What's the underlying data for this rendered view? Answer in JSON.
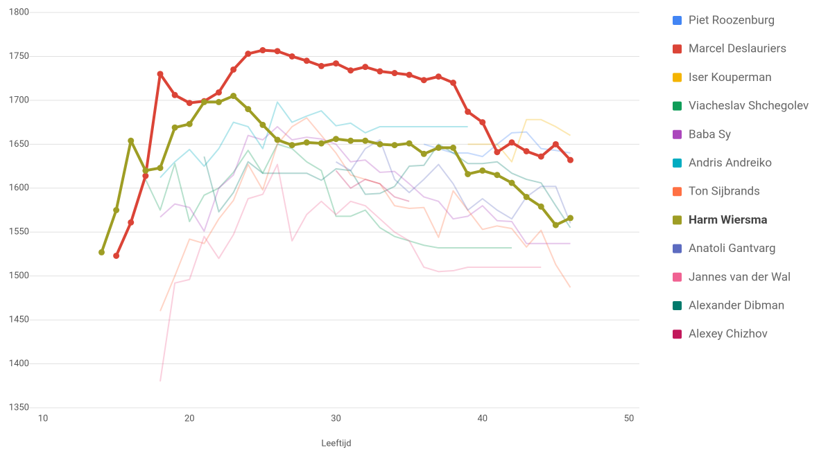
{
  "chart_data": {
    "type": "line",
    "x_label": "Leeftijd",
    "xlim": [
      10,
      50
    ],
    "xticks": [
      10,
      20,
      30,
      40,
      50
    ],
    "ylim": [
      1350,
      1800
    ],
    "yticks": [
      1350,
      1400,
      1450,
      1500,
      1550,
      1600,
      1650,
      1700,
      1750,
      1800
    ],
    "grid": true,
    "legend": "right",
    "series": [
      {
        "name": "Piet Roozenburg",
        "color": "#4285f4",
        "emphasis": false,
        "x": [
          36,
          37,
          38,
          39,
          40,
          41,
          42,
          43,
          44,
          45,
          46
        ],
        "values": [
          1650,
          1645,
          1640,
          1640,
          1636,
          1650,
          1663,
          1664,
          1645,
          1643,
          1640
        ]
      },
      {
        "name": "Marcel Deslauriers",
        "color": "#db4437",
        "emphasis": true,
        "x": [
          15,
          16,
          17,
          18,
          19,
          20,
          21,
          22,
          23,
          24,
          25,
          26,
          27,
          28,
          29,
          30,
          31,
          32,
          33,
          34,
          35,
          36,
          37,
          38,
          39,
          40,
          41,
          42,
          43,
          44,
          45,
          46
        ],
        "values": [
          1523,
          1561,
          1614,
          1730,
          1706,
          1697,
          1699,
          1709,
          1735,
          1753,
          1757,
          1756,
          1750,
          1745,
          1739,
          1742,
          1734,
          1738,
          1733,
          1731,
          1729,
          1723,
          1727,
          1720,
          1687,
          1675,
          1641,
          1652,
          1642,
          1636,
          1650,
          1632
        ]
      },
      {
        "name": "Iser Kouperman",
        "color": "#f4b400",
        "emphasis": false,
        "x": [
          39,
          40,
          41,
          42,
          43,
          44,
          45,
          46
        ],
        "values": [
          1650,
          1650,
          1650,
          1630,
          1678,
          1678,
          1670,
          1660
        ]
      },
      {
        "name": "Viacheslav Shchegolev",
        "color": "#0f9d58",
        "emphasis": false,
        "x": [
          17,
          18,
          19,
          20,
          21,
          22,
          23,
          24,
          25,
          26,
          27,
          28,
          29,
          30,
          31,
          32,
          33,
          34,
          35,
          36,
          37,
          38,
          39,
          40,
          41,
          42
        ],
        "values": [
          1610,
          1575,
          1628,
          1562,
          1592,
          1600,
          1618,
          1643,
          1617,
          1650,
          1645,
          1630,
          1620,
          1568,
          1568,
          1575,
          1555,
          1545,
          1540,
          1535,
          1532,
          1532,
          1532,
          1532,
          1532,
          1532
        ]
      },
      {
        "name": "Baba Sy",
        "color": "#ab47bc",
        "emphasis": false,
        "x": [
          18,
          19,
          20,
          21,
          22,
          23,
          24,
          25,
          26,
          27,
          28,
          29,
          30,
          31,
          32,
          33,
          34,
          35,
          36,
          37,
          38,
          39,
          40,
          41,
          42,
          43,
          44,
          45,
          46
        ],
        "values": [
          1567,
          1582,
          1578,
          1551,
          1600,
          1615,
          1660,
          1655,
          1670,
          1655,
          1658,
          1656,
          1650,
          1630,
          1632,
          1618,
          1619,
          1605,
          1590,
          1585,
          1565,
          1568,
          1580,
          1563,
          1562,
          1537,
          1537,
          1537,
          1537
        ]
      },
      {
        "name": "Andris Andreiko",
        "color": "#00acc1",
        "emphasis": false,
        "x": [
          18,
          19,
          20,
          21,
          22,
          23,
          24,
          25,
          26,
          27,
          28,
          29,
          30,
          31,
          32,
          33,
          34,
          35,
          36,
          37,
          38,
          39
        ],
        "values": [
          1612,
          1630,
          1644,
          1625,
          1645,
          1675,
          1670,
          1645,
          1698,
          1675,
          1682,
          1688,
          1671,
          1674,
          1663,
          1670,
          1670,
          1670,
          1670,
          1670,
          1670,
          1670
        ]
      },
      {
        "name": "Ton Sijbrands",
        "color": "#ff7043",
        "emphasis": false,
        "x": [
          18,
          19,
          20,
          21,
          22,
          23,
          24,
          25,
          26,
          27,
          28,
          29,
          30,
          31,
          32,
          33,
          34,
          35,
          36,
          37,
          38,
          39,
          40,
          41,
          42,
          43,
          44,
          45,
          46
        ],
        "values": [
          1460,
          1500,
          1542,
          1537,
          1565,
          1586,
          1627,
          1598,
          1650,
          1670,
          1680,
          1660,
          1640,
          1615,
          1610,
          1605,
          1580,
          1577,
          1578,
          1544,
          1597,
          1575,
          1553,
          1557,
          1554,
          1533,
          1552,
          1513,
          1487
        ]
      },
      {
        "name": "Harm Wiersma",
        "color": "#9e9d24",
        "emphasis": true,
        "x": [
          14,
          15,
          16,
          17,
          18,
          19,
          20,
          21,
          22,
          23,
          24,
          25,
          26,
          27,
          28,
          29,
          30,
          31,
          32,
          33,
          34,
          35,
          36,
          37,
          38,
          39,
          40,
          41,
          42,
          43,
          44,
          45,
          46
        ],
        "values": [
          1527,
          1575,
          1654,
          1620,
          1623,
          1669,
          1673,
          1698,
          1698,
          1705,
          1690,
          1672,
          1655,
          1649,
          1652,
          1651,
          1656,
          1654,
          1654,
          1650,
          1649,
          1651,
          1639,
          1646,
          1646,
          1616,
          1620,
          1615,
          1606,
          1590,
          1579,
          1558,
          1566
        ]
      },
      {
        "name": "Anatoli Gantvarg",
        "color": "#5c6bc0",
        "emphasis": false,
        "x": [
          30,
          31,
          32,
          33,
          34,
          35,
          36,
          37,
          38,
          39,
          40,
          41,
          42,
          43,
          44,
          45,
          46
        ],
        "values": [
          1630,
          1620,
          1645,
          1655,
          1610,
          1595,
          1610,
          1627,
          1605,
          1575,
          1588,
          1575,
          1565,
          1590,
          1602,
          1602,
          1560
        ]
      },
      {
        "name": "Jannes van der Wal",
        "color": "#f06292",
        "emphasis": false,
        "x": [
          18,
          19,
          20,
          21,
          22,
          23,
          24,
          25,
          26,
          27,
          28,
          29,
          30,
          31,
          32,
          33,
          34,
          35,
          36,
          37,
          38,
          39,
          40,
          41,
          42,
          43,
          44
        ],
        "values": [
          1380,
          1492,
          1496,
          1545,
          1520,
          1547,
          1588,
          1593,
          1627,
          1540,
          1570,
          1585,
          1570,
          1585,
          1580,
          1565,
          1550,
          1540,
          1510,
          1505,
          1506,
          1510,
          1510,
          1510,
          1510,
          1510,
          1510
        ]
      },
      {
        "name": "Alexander Dibman",
        "color": "#00796b",
        "emphasis": false,
        "x": [
          21,
          22,
          23,
          24,
          25,
          26,
          27,
          28,
          29,
          30,
          31,
          32,
          33,
          34,
          35,
          36,
          37,
          38,
          39,
          40,
          41,
          42,
          43,
          44,
          45,
          46
        ],
        "values": [
          1636,
          1573,
          1595,
          1630,
          1617,
          1617,
          1617,
          1617,
          1609,
          1622,
          1620,
          1593,
          1594,
          1602,
          1625,
          1626,
          1650,
          1640,
          1628,
          1628,
          1630,
          1617,
          1610,
          1606,
          1580,
          1555
        ]
      },
      {
        "name": "Alexey Chizhov",
        "color": "#c2185b",
        "emphasis": false,
        "x": [
          30,
          31,
          32,
          33,
          34,
          35
        ],
        "values": [
          1620,
          1600,
          1610,
          1605,
          1590,
          1585
        ]
      }
    ]
  }
}
